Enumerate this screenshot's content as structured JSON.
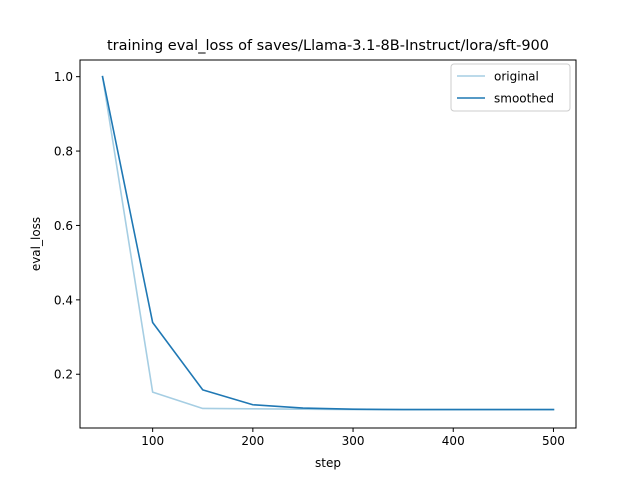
{
  "chart_data": {
    "type": "line",
    "title": "training eval_loss of saves/Llama-3.1-8B-Instruct/lora/sft-900",
    "xlabel": "step",
    "ylabel": "eval_loss",
    "xlim": [
      27.5,
      522.5
    ],
    "ylim": [
      0.0555,
      1.0448
    ],
    "xticks": [
      100,
      200,
      300,
      400,
      500
    ],
    "yticks": [
      0.2,
      0.4,
      0.6,
      0.8,
      1.0
    ],
    "xtick_labels": [
      "100",
      "200",
      "300",
      "400",
      "500"
    ],
    "ytick_labels": [
      "0.2",
      "0.4",
      "0.6",
      "0.8",
      "1.0"
    ],
    "legend_position": "top-right",
    "grid": false,
    "series": [
      {
        "name": "original",
        "color": "#a6cee3",
        "x": [
          50,
          100,
          150,
          200,
          250,
          300,
          350,
          400,
          450,
          500
        ],
        "y": [
          1.0,
          0.152,
          0.108,
          0.107,
          0.106,
          0.105,
          0.105,
          0.105,
          0.105,
          0.105
        ]
      },
      {
        "name": "smoothed",
        "color": "#1f78b4",
        "x": [
          50,
          100,
          150,
          200,
          250,
          300,
          350,
          400,
          450,
          500
        ],
        "y": [
          1.0,
          0.339,
          0.158,
          0.118,
          0.109,
          0.106,
          0.105,
          0.105,
          0.105,
          0.105
        ]
      }
    ]
  }
}
